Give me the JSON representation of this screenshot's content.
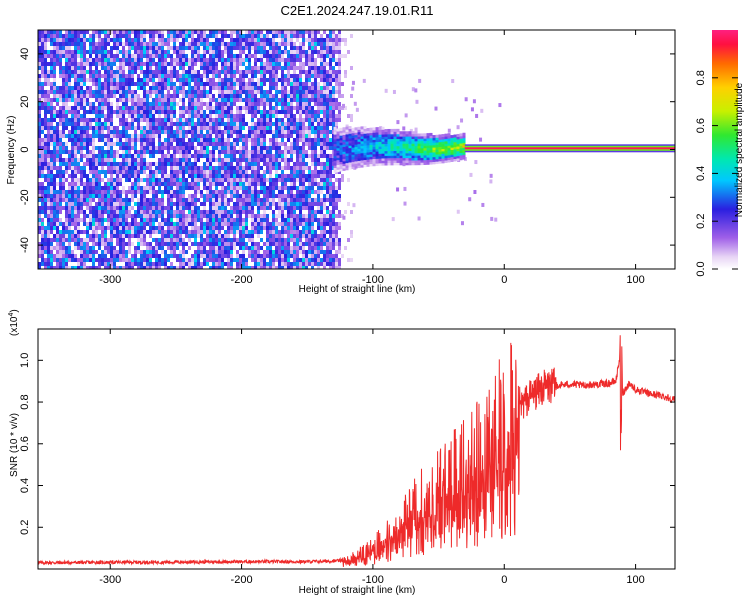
{
  "chart_data": [
    {
      "type": "heatmap",
      "title": "C2E1.2024.247.19.01.R11",
      "xlabel": "Height of straight line (km)",
      "ylabel": "Frequency (Hz)",
      "xlim": [
        -355,
        130
      ],
      "ylim": [
        -50,
        50
      ],
      "x_ticks": [
        -300,
        -200,
        -100,
        0,
        100
      ],
      "y_ticks": [
        -40,
        -20,
        0,
        20,
        40
      ],
      "grid": false,
      "colorbar": {
        "label": "Normalized spectral amplitude",
        "range": [
          0,
          1
        ],
        "ticks": [
          "0.0",
          "0.2",
          "0.4",
          "0.6",
          "0.8"
        ]
      },
      "features": {
        "noise_extent_km": [
          -355,
          -125
        ],
        "signal_band": {
          "x": [
            -130,
            130
          ],
          "freq_start_hz": [
            -5,
            5
          ],
          "freq_end_hz": [
            -1,
            1
          ]
        },
        "carrier_line": {
          "x": [
            -30,
            130
          ],
          "freq_hz": 0.5
        }
      }
    },
    {
      "type": "line",
      "xlabel": "Height of straight line (km)",
      "ylabel": "SNR (10 * v/v)",
      "y_multiplier": "(x10",
      "y_multiplier_exp": "4",
      "xlim": [
        -355,
        130
      ],
      "ylim": [
        0,
        11500
      ],
      "x_ticks": [
        -300,
        -200,
        -100,
        0,
        100
      ],
      "y_ticks": [
        "0.2",
        "0.4",
        "0.6",
        "0.8",
        "1.0"
      ],
      "y_tick_values": [
        2000,
        4000,
        6000,
        8000,
        10000
      ],
      "grid": false,
      "color": "#ee2a2a",
      "series": [
        {
          "x": [
            -355,
            -300,
            -250,
            -200,
            -150,
            -120,
            -110,
            -100,
            -90,
            -80,
            -70,
            -60,
            -50,
            -40,
            -30,
            -20,
            -10,
            0,
            10,
            20,
            30,
            40,
            50,
            60,
            70,
            80,
            85,
            88,
            90,
            95,
            100,
            110,
            120,
            130
          ],
          "values": [
            300,
            320,
            330,
            350,
            350,
            400,
            700,
            1000,
            1500,
            2000,
            2800,
            3300,
            3800,
            4300,
            4800,
            5300,
            6000,
            6800,
            7600,
            8300,
            8700,
            8800,
            8850,
            8800,
            8850,
            8900,
            9000,
            10200,
            8400,
            8900,
            8600,
            8400,
            8300,
            8100
          ]
        }
      ]
    }
  ]
}
